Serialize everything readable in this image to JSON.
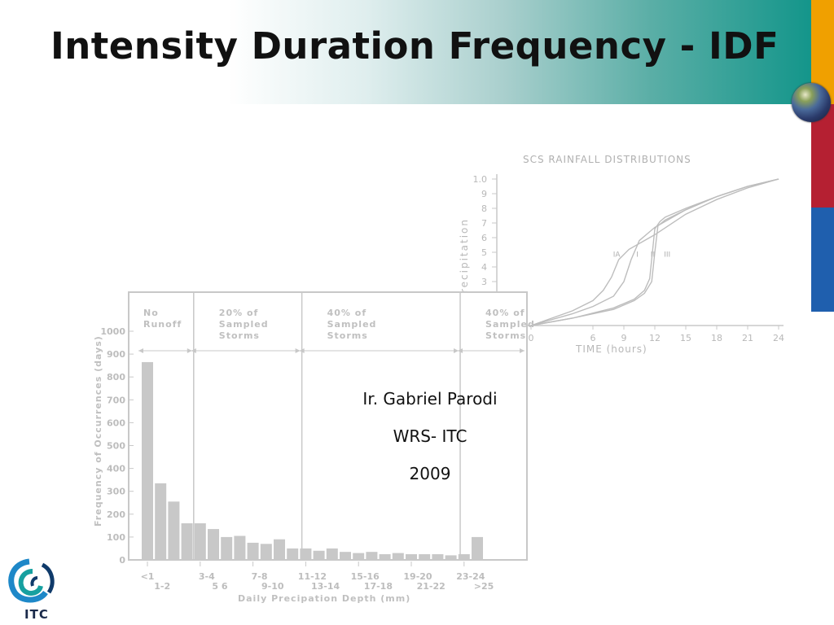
{
  "slide": {
    "title": "Intensity Duration Frequency - IDF",
    "author": "Ir. Gabriel Parodi",
    "affiliation": "WRS- ITC",
    "year": "2009",
    "logo_text": "ITC"
  },
  "colors": {
    "bar_orange": "#f0a000",
    "bar_red": "#b52032",
    "bar_blue": "#1f5fae",
    "header_teal": "#12958a",
    "chart_bar": "#c8c8c8"
  },
  "chart_data": [
    {
      "type": "line",
      "title": "SCS RAINFALL DISTRIBUTIONS",
      "xlabel": "TIME (hours)",
      "ylabel": "recipitation",
      "x_ticks": [
        "0",
        "6",
        "9",
        "12",
        "15",
        "18",
        "21",
        "24"
      ],
      "y_ticks": [
        "1.0",
        "9",
        "8",
        "7",
        "6",
        "5",
        "4",
        "3"
      ],
      "xlim": [
        0,
        24
      ],
      "ylim": [
        0,
        1.0
      ],
      "series": [
        {
          "name": "IA",
          "x": [
            0,
            4,
            6,
            7,
            7.8,
            8.5,
            9.5,
            12,
            15,
            18,
            21,
            24
          ],
          "y": [
            0,
            0.1,
            0.17,
            0.24,
            0.33,
            0.45,
            0.52,
            0.62,
            0.76,
            0.86,
            0.94,
            1.0
          ]
        },
        {
          "name": "I",
          "x": [
            0,
            4,
            6,
            8,
            9,
            9.7,
            10.5,
            12,
            15,
            18,
            21,
            24
          ],
          "y": [
            0,
            0.08,
            0.13,
            0.2,
            0.3,
            0.45,
            0.58,
            0.67,
            0.79,
            0.88,
            0.95,
            1.0
          ]
        },
        {
          "name": "II",
          "x": [
            0,
            4,
            8,
            10,
            11,
            11.5,
            12,
            12.5,
            13,
            15,
            18,
            21,
            24
          ],
          "y": [
            0,
            0.05,
            0.12,
            0.18,
            0.24,
            0.32,
            0.66,
            0.71,
            0.74,
            0.8,
            0.88,
            0.95,
            1.0
          ]
        },
        {
          "name": "III",
          "x": [
            0,
            4,
            8,
            10,
            11,
            11.7,
            12,
            12.3,
            13,
            15,
            18,
            21,
            24
          ],
          "y": [
            0,
            0.05,
            0.11,
            0.17,
            0.22,
            0.3,
            0.5,
            0.68,
            0.72,
            0.79,
            0.88,
            0.95,
            1.0
          ]
        }
      ],
      "curve_labels": [
        "IA",
        "I",
        "II",
        "III"
      ]
    },
    {
      "type": "bar",
      "title": "",
      "xlabel": "Daily Precipation Depth (mm)",
      "ylabel": "Frequency of Occurrences (days)",
      "ylim": [
        0,
        1000
      ],
      "y_ticks": [
        0,
        100,
        200,
        300,
        400,
        500,
        600,
        700,
        800,
        900,
        1000
      ],
      "x_labels_top": [
        "<1",
        "3-4",
        "7-8",
        "11-12",
        "15-16",
        "19-20",
        "23-24"
      ],
      "x_labels_bottom": [
        "1-2",
        "5 6",
        "9-10",
        "13-14",
        "17-18",
        "21-22",
        ">25"
      ],
      "values": [
        865,
        335,
        255,
        160,
        160,
        135,
        100,
        105,
        75,
        70,
        90,
        50,
        50,
        40,
        50,
        35,
        30,
        35,
        25,
        30,
        25,
        25,
        25,
        20,
        25,
        100
      ],
      "regions": [
        {
          "label_lines": [
            "No",
            "Runoff"
          ]
        },
        {
          "label_lines": [
            "20% of",
            "Sampled",
            "Storms"
          ]
        },
        {
          "label_lines": [
            "40% of",
            "Sampled",
            "Storms"
          ]
        },
        {
          "label_lines": [
            "40% of",
            "Sampled",
            "Storms"
          ]
        }
      ]
    }
  ]
}
